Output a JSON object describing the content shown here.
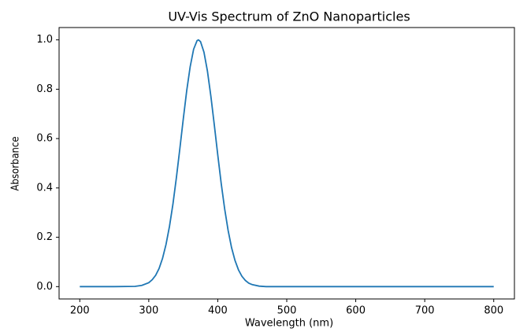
{
  "chart_data": {
    "type": "line",
    "title": "UV-Vis Spectrum of ZnO Nanoparticles",
    "x_label": "Wavelength (nm)",
    "y_label": "Absorbance",
    "x": [
      200,
      250,
      280,
      290,
      300,
      305,
      310,
      315,
      320,
      325,
      330,
      335,
      340,
      345,
      350,
      355,
      360,
      365,
      370,
      372,
      375,
      380,
      385,
      390,
      395,
      400,
      405,
      410,
      415,
      420,
      425,
      430,
      435,
      440,
      445,
      450,
      460,
      470,
      480,
      500,
      600,
      700,
      800
    ],
    "series": [
      {
        "name": "Absorbance",
        "color": "#1f77b4",
        "values": [
          0,
          0,
          0.001,
          0.005,
          0.016,
          0.028,
          0.046,
          0.074,
          0.115,
          0.171,
          0.244,
          0.334,
          0.441,
          0.558,
          0.679,
          0.794,
          0.891,
          0.962,
          0.997,
          1.0,
          0.993,
          0.95,
          0.874,
          0.772,
          0.655,
          0.534,
          0.418,
          0.315,
          0.228,
          0.158,
          0.106,
          0.068,
          0.042,
          0.025,
          0.014,
          0.008,
          0.002,
          0,
          0,
          0,
          0,
          0,
          0
        ]
      }
    ],
    "xlim": [
      170,
      830
    ],
    "xticks": [
      200,
      300,
      400,
      500,
      600,
      700,
      800
    ],
    "ylim": [
      -0.05,
      1.05
    ],
    "yticks": [
      {
        "value": 0,
        "label": "0.0"
      },
      0.2,
      0.4,
      0.6,
      0.8,
      {
        "value": 1,
        "label": "1.0"
      }
    ],
    "grid": false
  }
}
